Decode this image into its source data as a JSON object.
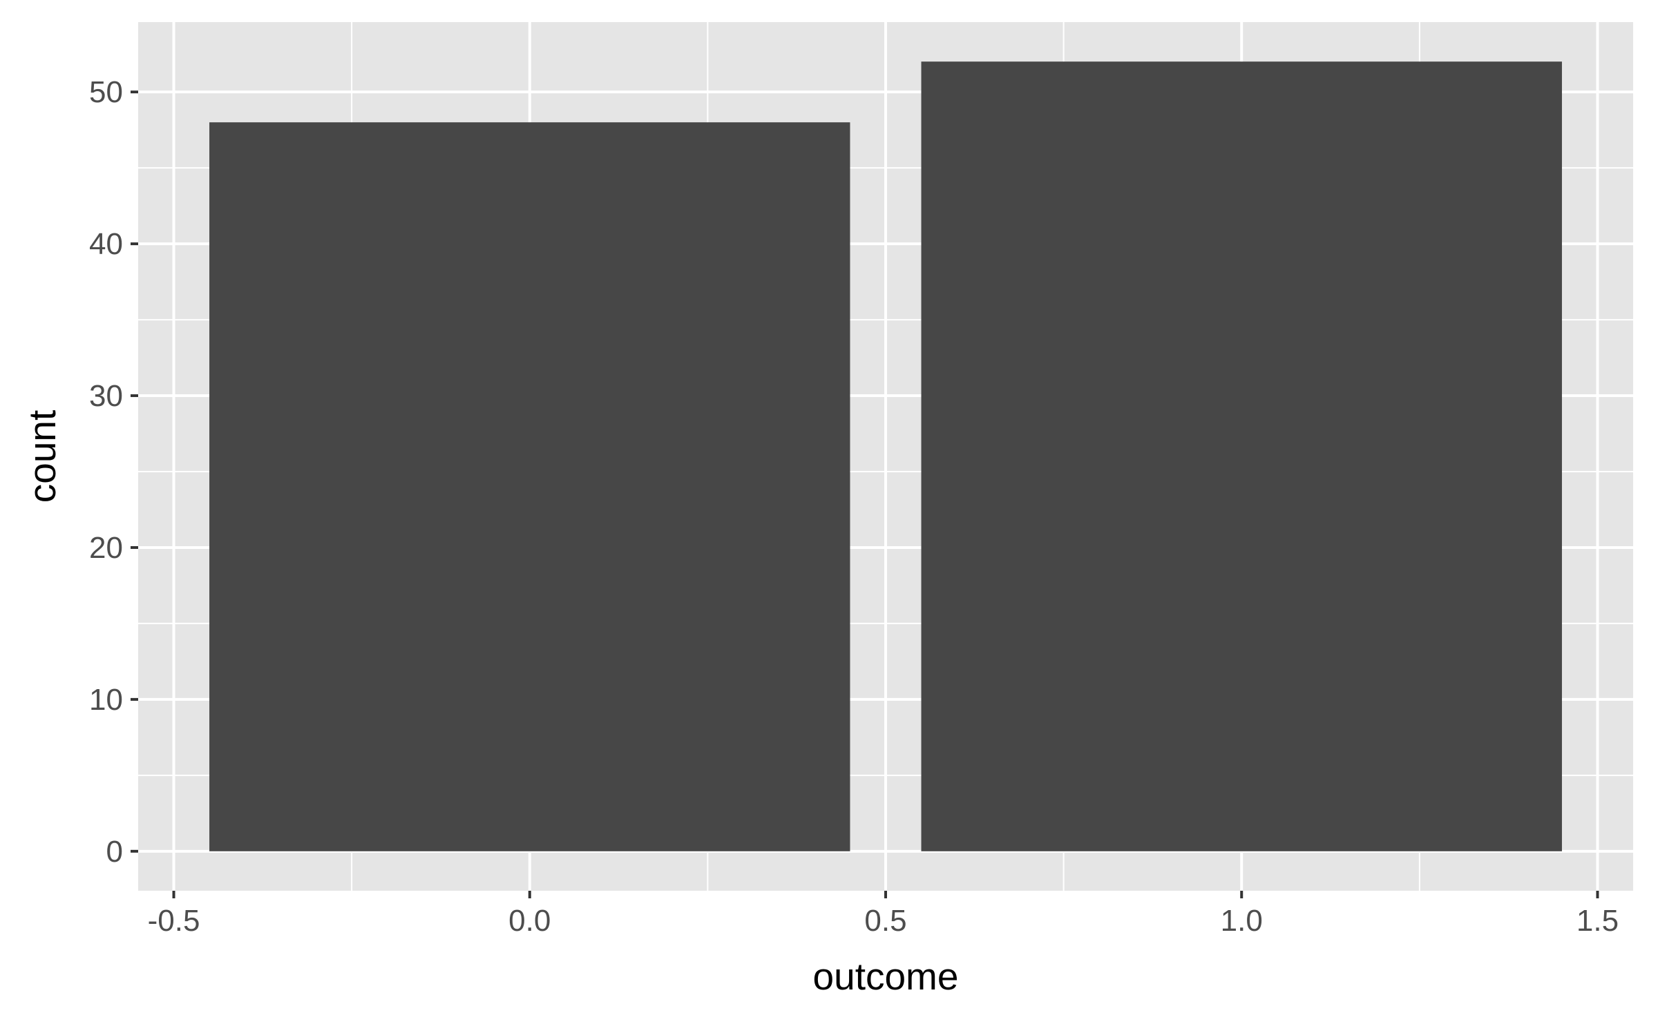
{
  "chart_data": {
    "type": "bar",
    "title": "",
    "xlabel": "outcome",
    "ylabel": "count",
    "bars": [
      {
        "x": 0,
        "width": 0.9,
        "value": 48
      },
      {
        "x": 1,
        "width": 0.9,
        "value": 52
      }
    ],
    "xlim": [
      -0.55,
      1.55
    ],
    "ylim": [
      -2.6,
      54.6
    ],
    "x_ticks": [
      -0.5,
      0.0,
      0.5,
      1.0,
      1.5
    ],
    "x_tick_labels": [
      "-0.5",
      "0.0",
      "0.5",
      "1.0",
      "1.5"
    ],
    "x_minor_ticks": [
      -0.25,
      0.25,
      0.75,
      1.25
    ],
    "y_ticks": [
      0,
      10,
      20,
      30,
      40,
      50
    ],
    "y_tick_labels": [
      "0",
      "10",
      "20",
      "30",
      "40",
      "50"
    ],
    "y_minor_ticks": [
      5,
      15,
      25,
      35,
      45
    ],
    "grid": true,
    "legend": "none",
    "colors": {
      "panel_background": "#e5e5e5",
      "grid": "#ffffff",
      "bar_fill": "#474747",
      "axis_ticks": "#333333",
      "tick_text": "#4d4d4d",
      "title_text": "#000000"
    }
  }
}
